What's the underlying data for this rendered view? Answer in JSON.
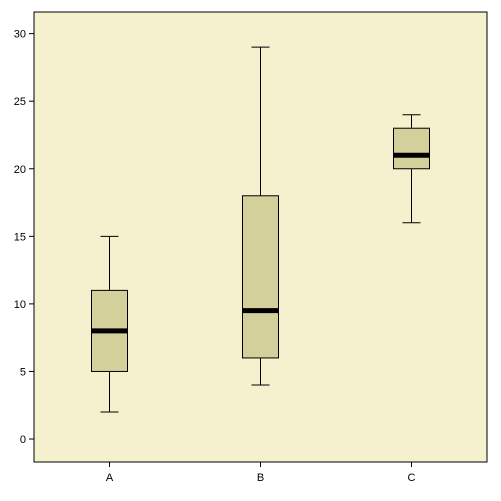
{
  "chart_data": {
    "type": "box",
    "title": "",
    "xlabel": "",
    "ylabel": "",
    "ylim": [
      -1.7,
      31.6
    ],
    "yticks": [
      0,
      5,
      10,
      15,
      20,
      25,
      30
    ],
    "ytick_labels": [
      "0",
      "5",
      "10",
      "15",
      "20",
      "25",
      "30"
    ],
    "categories": [
      "A",
      "B",
      "C"
    ],
    "boxes": [
      {
        "category": "A",
        "min": 2,
        "q1": 5,
        "median": 8,
        "q3": 11,
        "max": 15
      },
      {
        "category": "B",
        "min": 4,
        "q1": 6,
        "median": 9.5,
        "q3": 18,
        "max": 29
      },
      {
        "category": "C",
        "min": 16,
        "q1": 20,
        "median": 21,
        "q3": 23,
        "max": 24
      }
    ],
    "grid": false,
    "legend": "none",
    "colors": {
      "plot_background": "#f5f0cd",
      "box_fill": "#d4d09b",
      "outline": "#000000",
      "page_background": "#ffffff"
    }
  }
}
